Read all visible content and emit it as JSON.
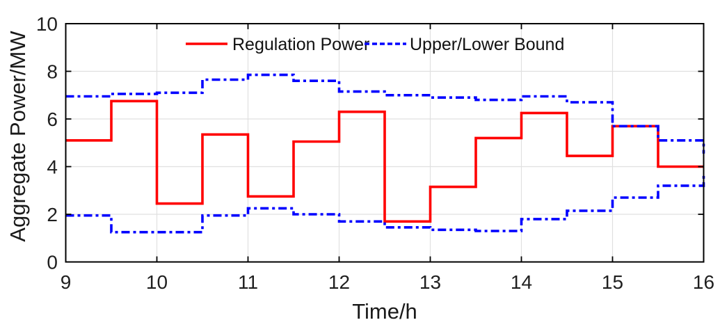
{
  "figure": {
    "xlabel": "Time/h",
    "ylabel": "Aggregate Power/MW",
    "legend": [
      {
        "label": "Regulation Power",
        "color": "#ff0000",
        "style": "solid"
      },
      {
        "label": "Upper/Lower Bound",
        "color": "#0000ff",
        "style": "dashdot"
      }
    ]
  },
  "chart_data": {
    "type": "line",
    "subtype": "step",
    "title": "",
    "xlabel": "Time/h",
    "ylabel": "Aggregate Power/MW",
    "xlim": [
      9,
      16
    ],
    "ylim": [
      0,
      10
    ],
    "xticks": [
      9,
      10,
      11,
      12,
      13,
      14,
      15,
      16
    ],
    "yticks": [
      0,
      2,
      4,
      6,
      8,
      10
    ],
    "grid": true,
    "legend_position": "top-inside-no-box",
    "x": [
      9,
      9.5,
      10,
      10.5,
      11,
      11.5,
      12,
      12.5,
      13,
      13.5,
      14,
      14.5,
      15,
      15.5,
      16
    ],
    "series": [
      {
        "name": "Regulation Power",
        "color": "#ff0000",
        "line_style": "solid",
        "values": [
          5.1,
          6.75,
          2.45,
          5.35,
          2.75,
          5.05,
          6.3,
          1.7,
          3.15,
          5.2,
          6.25,
          4.45,
          5.7,
          4.0,
          4.0
        ]
      },
      {
        "name": "Upper Bound",
        "color": "#0000ff",
        "line_style": "dashdot",
        "values": [
          6.95,
          7.05,
          7.1,
          7.65,
          7.85,
          7.6,
          7.15,
          7.0,
          6.9,
          6.8,
          6.95,
          6.7,
          5.7,
          5.1,
          4.55
        ]
      },
      {
        "name": "Lower Bound",
        "color": "#0000ff",
        "line_style": "dashdot",
        "values": [
          1.95,
          1.25,
          1.25,
          1.95,
          2.25,
          2.0,
          1.7,
          1.45,
          1.35,
          1.3,
          1.8,
          2.15,
          2.7,
          3.2,
          3.65
        ]
      }
    ],
    "colors": {
      "grid": "#e0e0e0",
      "axis": "#000000",
      "tick_text": "#1f1f1f",
      "background": "#ffffff"
    }
  }
}
